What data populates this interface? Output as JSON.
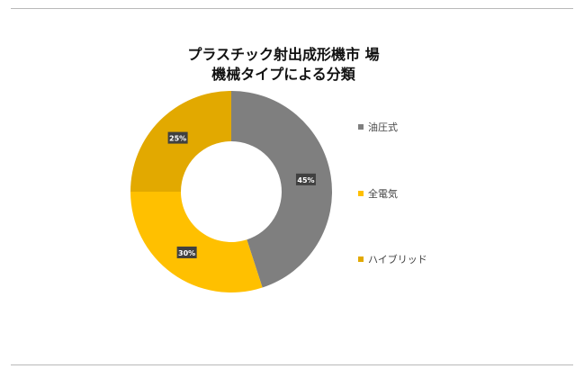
{
  "chart_data": {
    "type": "pie",
    "title_lines": [
      "プラスチック射出成形機市 場",
      "機械タイプによる分類"
    ],
    "categories": [
      "油圧式",
      "全電気",
      "ハイブリッド"
    ],
    "values": [
      45,
      30,
      25
    ],
    "data_labels": [
      "45%",
      "30%",
      "25%"
    ],
    "colors": [
      "#7f7f7f",
      "#ffc000",
      "#e2a900"
    ],
    "donut": true,
    "legend_position": "right"
  }
}
